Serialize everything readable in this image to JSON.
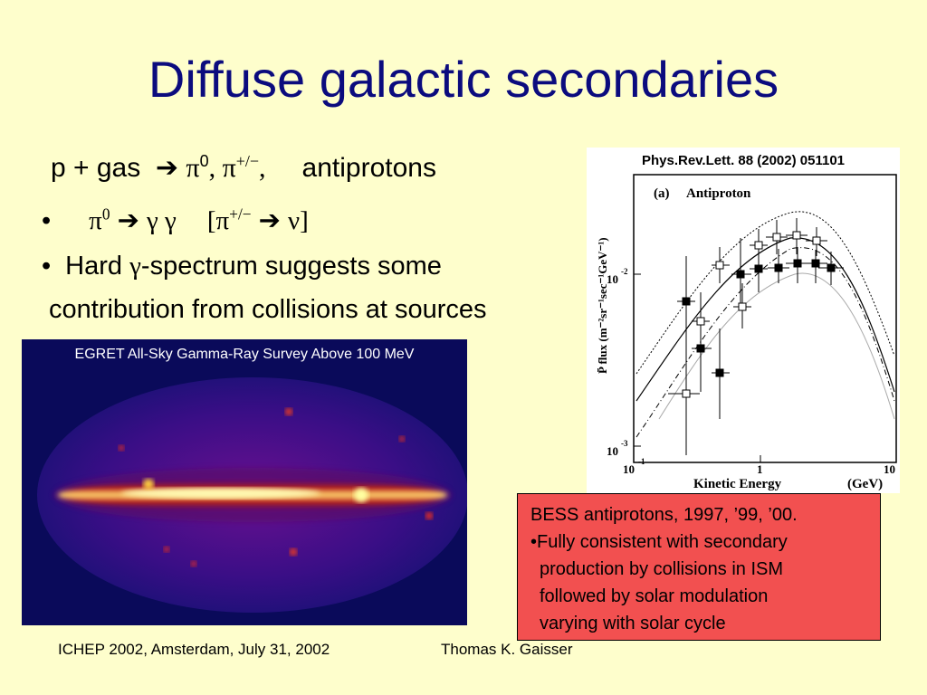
{
  "slide": {
    "title": "Diffuse galactic secondaries",
    "line1": {
      "lhs": "p + gas",
      "arrow": "➔",
      "pi0": "π",
      "pi0_sup": "0",
      "sep": ", ",
      "pipm": "π",
      "pipm_sup": "+/−",
      "tail": ",",
      "antiprotons": "antiprotons"
    },
    "bullet1": {
      "dot": "•",
      "pi": "π",
      "pi_sup": "0",
      "arrow": "➔",
      "gg": "γ γ",
      "bracket_open": "[π",
      "bracket_sup": "+/−",
      "arrow2": "➔",
      "nu": "ν]"
    },
    "bullet2": {
      "dot": "•",
      "pre": "Hard ",
      "gamma": "γ",
      "post": "-spectrum suggests some",
      "cont": "contribution from collisions at sources"
    },
    "egret": {
      "label": "EGRET All-Sky Gamma-Ray Survey Above 100 MeV"
    },
    "plot": {
      "reference": "Phys.Rev.Lett. 88 (2002) 051101",
      "panel": "(a)",
      "panel_title": "Antiproton",
      "ylabel": "P̄ flux (m⁻²sr⁻¹sec⁻¹GeV⁻¹)",
      "xlabel": "Kinetic Energy",
      "xunit": "(GeV)",
      "ytick_top": "10",
      "ytick_top_exp": "-2",
      "ytick_bottom": "10",
      "ytick_bottom_exp": "-3",
      "xtick_left": "10",
      "xtick_left_exp": "-1",
      "xtick_mid": "1",
      "xtick_right": "10"
    },
    "bess": {
      "lines": [
        "BESS antiprotons, 1997, ’99, ’00.",
        "•Fully consistent with secondary",
        "production by collisions in ISM",
        "followed by solar modulation",
        "varying with solar cycle"
      ]
    },
    "footer": {
      "left": "ICHEP 2002, Amsterdam, July 31, 2002",
      "right": "Thomas K. Gaisser"
    }
  },
  "colors": {
    "background": "#fefecc",
    "title": "#0b0b7e",
    "box": "#f25050",
    "sky_background": "#0a0a5a"
  }
}
